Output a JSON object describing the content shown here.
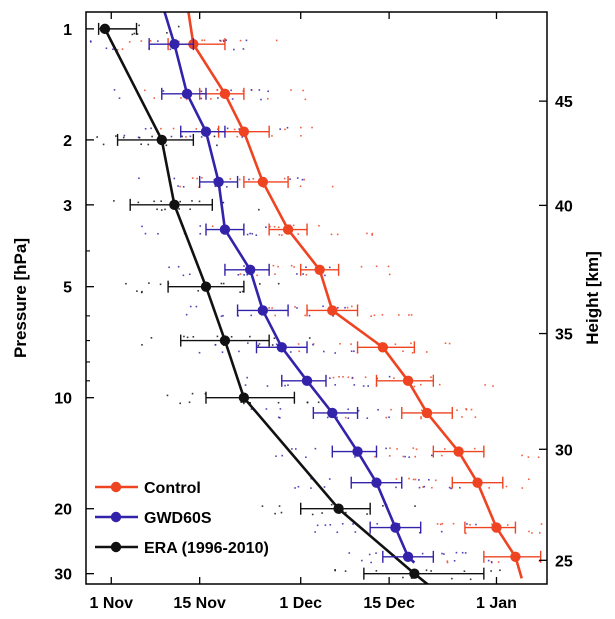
{
  "chart_data": {
    "type": "line",
    "title": "",
    "xlabel": "",
    "ylabel": "Pressure [hPa]",
    "y2label": "Height [km]",
    "y_scale": "log",
    "y_inverted": true,
    "xlim": [
      "1999-10-28",
      "2000-01-09"
    ],
    "ylim": [
      0.9,
      32
    ],
    "x_ticks": [
      {
        "date": "1999-11-01",
        "label": "1 Nov"
      },
      {
        "date": "1999-11-15",
        "label": "15 Nov"
      },
      {
        "date": "1999-12-01",
        "label": "1 Dec"
      },
      {
        "date": "1999-12-15",
        "label": "15 Dec"
      },
      {
        "date": "2000-01-01",
        "label": "1 Jan"
      }
    ],
    "y_ticks": [
      {
        "value": 1,
        "label": "1"
      },
      {
        "value": 2,
        "label": "2"
      },
      {
        "value": 3,
        "label": "3"
      },
      {
        "value": 5,
        "label": "5"
      },
      {
        "value": 10,
        "label": "10"
      },
      {
        "value": 20,
        "label": "20"
      },
      {
        "value": 30,
        "label": "30"
      }
    ],
    "y2_ticks": [
      {
        "pressure": 1.57,
        "label": "45"
      },
      {
        "pressure": 3.01,
        "label": "40"
      },
      {
        "pressure": 6.7,
        "label": "35"
      },
      {
        "pressure": 13.8,
        "label": "30"
      },
      {
        "pressure": 27.6,
        "label": "25"
      }
    ],
    "legend_position": "bottom-left",
    "series": [
      {
        "name": "Control",
        "color": "#ee4422",
        "line_pressure": [
          0.85,
          30.9
        ],
        "line_date": [
          "1999-11-13",
          "2000-01-05"
        ],
        "points": [
          {
            "date": "1999-11-14",
            "pressure": 1.1,
            "err_lo": "1999-11-10",
            "err_hi": "1999-11-19"
          },
          {
            "date": "1999-11-19",
            "pressure": 1.5,
            "err_lo": "1999-11-15",
            "err_hi": "1999-11-22"
          },
          {
            "date": "1999-11-22",
            "pressure": 1.9,
            "err_lo": "1999-11-18",
            "err_hi": "1999-11-26"
          },
          {
            "date": "1999-11-25",
            "pressure": 2.6,
            "err_lo": "1999-11-22",
            "err_hi": "1999-11-29"
          },
          {
            "date": "1999-11-29",
            "pressure": 3.5,
            "err_lo": "1999-11-26",
            "err_hi": "1999-12-02"
          },
          {
            "date": "1999-12-04",
            "pressure": 4.5,
            "err_lo": "1999-12-01",
            "err_hi": "1999-12-07"
          },
          {
            "date": "1999-12-06",
            "pressure": 5.8,
            "err_lo": "1999-12-02",
            "err_hi": "1999-12-10"
          },
          {
            "date": "1999-12-14",
            "pressure": 7.3,
            "err_lo": "1999-12-10",
            "err_hi": "1999-12-19"
          },
          {
            "date": "1999-12-18",
            "pressure": 9.0,
            "err_lo": "1999-12-13",
            "err_hi": "1999-12-22"
          },
          {
            "date": "1999-12-21",
            "pressure": 11.0,
            "err_lo": "1999-12-17",
            "err_hi": "1999-12-25"
          },
          {
            "date": "1999-12-26",
            "pressure": 14.0,
            "err_lo": "1999-12-22",
            "err_hi": "1999-12-30"
          },
          {
            "date": "1999-12-29",
            "pressure": 17.0,
            "err_lo": "1999-12-25",
            "err_hi": "2000-01-02"
          },
          {
            "date": "2000-01-01",
            "pressure": 22.5,
            "err_lo": "1999-12-27",
            "err_hi": "2000-01-04"
          },
          {
            "date": "2000-01-04",
            "pressure": 27.0,
            "err_lo": "1999-12-30",
            "err_hi": "2000-01-08"
          }
        ]
      },
      {
        "name": "GWD60S",
        "color": "#3322aa",
        "line_pressure": [
          0.85,
          28.0
        ],
        "line_date": [
          "1999-11-09",
          "1999-12-19"
        ],
        "points": [
          {
            "date": "1999-11-11",
            "pressure": 1.1,
            "err_lo": "1999-11-07",
            "err_hi": "1999-11-14"
          },
          {
            "date": "1999-11-13",
            "pressure": 1.5,
            "err_lo": "1999-11-09",
            "err_hi": "1999-11-16"
          },
          {
            "date": "1999-11-16",
            "pressure": 1.9,
            "err_lo": "1999-11-12",
            "err_hi": "1999-11-19"
          },
          {
            "date": "1999-11-18",
            "pressure": 2.6,
            "err_lo": "1999-11-15",
            "err_hi": "1999-11-21"
          },
          {
            "date": "1999-11-19",
            "pressure": 3.5,
            "err_lo": "1999-11-16",
            "err_hi": "1999-11-22"
          },
          {
            "date": "1999-11-23",
            "pressure": 4.5,
            "err_lo": "1999-11-19",
            "err_hi": "1999-11-26"
          },
          {
            "date": "1999-11-25",
            "pressure": 5.8,
            "err_lo": "1999-11-21",
            "err_hi": "1999-11-29"
          },
          {
            "date": "1999-11-28",
            "pressure": 7.3,
            "err_lo": "1999-11-24",
            "err_hi": "1999-12-02"
          },
          {
            "date": "1999-12-02",
            "pressure": 9.0,
            "err_lo": "1999-11-28",
            "err_hi": "1999-12-05"
          },
          {
            "date": "1999-12-06",
            "pressure": 11.0,
            "err_lo": "1999-12-03",
            "err_hi": "1999-12-10"
          },
          {
            "date": "1999-12-10",
            "pressure": 14.0,
            "err_lo": "1999-12-06",
            "err_hi": "1999-12-13"
          },
          {
            "date": "1999-12-13",
            "pressure": 17.0,
            "err_lo": "1999-12-09",
            "err_hi": "1999-12-17"
          },
          {
            "date": "1999-12-16",
            "pressure": 22.5,
            "err_lo": "1999-12-12",
            "err_hi": "1999-12-20"
          },
          {
            "date": "1999-12-18",
            "pressure": 27.0,
            "err_lo": "1999-12-14",
            "err_hi": "1999-12-22"
          }
        ]
      },
      {
        "name": "ERA (1996-2010)",
        "color": "#111111",
        "line_pressure": [
          1.0,
          33.0
        ],
        "line_date": [
          "1999-10-31",
          "1999-12-22"
        ],
        "points": [
          {
            "date": "1999-10-31",
            "pressure": 1.0,
            "err_lo": "1999-10-30",
            "err_hi": "1999-11-05"
          },
          {
            "date": "1999-11-09",
            "pressure": 2.0,
            "err_lo": "1999-11-02",
            "err_hi": "1999-11-14"
          },
          {
            "date": "1999-11-11",
            "pressure": 3.0,
            "err_lo": "1999-11-04",
            "err_hi": "1999-11-17"
          },
          {
            "date": "1999-11-16",
            "pressure": 5.0,
            "err_lo": "1999-11-10",
            "err_hi": "1999-11-22"
          },
          {
            "date": "1999-11-19",
            "pressure": 7.0,
            "err_lo": "1999-11-12",
            "err_hi": "1999-11-26"
          },
          {
            "date": "1999-11-22",
            "pressure": 10.0,
            "err_lo": "1999-11-16",
            "err_hi": "1999-11-30"
          },
          {
            "date": "1999-12-07",
            "pressure": 20.0,
            "err_lo": "1999-12-01",
            "err_hi": "1999-12-12"
          },
          {
            "date": "1999-12-19",
            "pressure": 30.0,
            "err_lo": "1999-12-11",
            "err_hi": "1999-12-30"
          }
        ]
      }
    ]
  }
}
